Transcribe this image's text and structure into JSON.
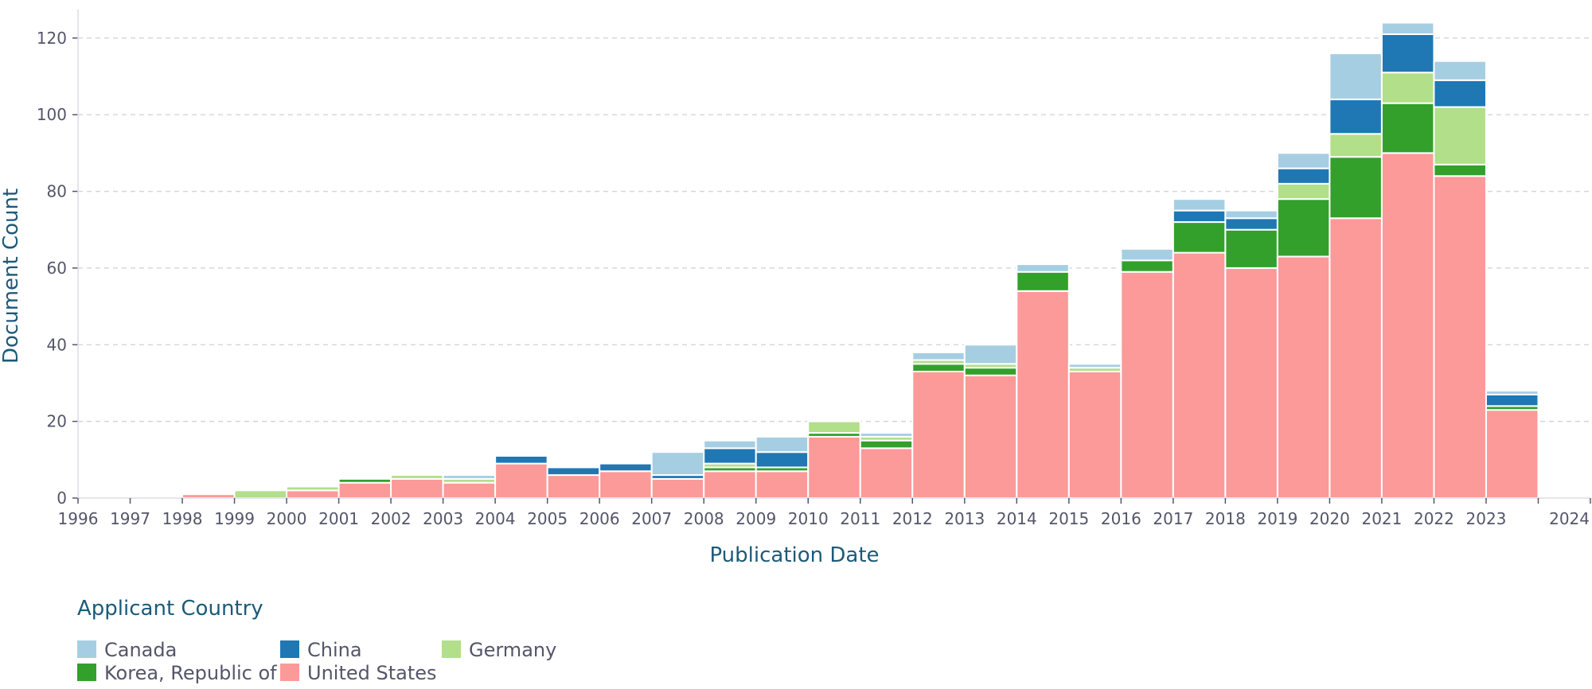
{
  "chart_data": {
    "type": "bar",
    "stacked": true,
    "xlabel": "Publication Date",
    "ylabel": "Document Count",
    "ylim": [
      0,
      129
    ],
    "yticks": [
      0,
      20,
      40,
      60,
      80,
      100,
      120
    ],
    "grid": "horizontal dashed",
    "legend_title": "Applicant Country",
    "legend_position": "bottom-left",
    "categories": [
      "1996",
      "1997",
      "1998",
      "1999",
      "2000",
      "2001",
      "2002",
      "2003",
      "2004",
      "2005",
      "2006",
      "2007",
      "2008",
      "2009",
      "2010",
      "2011",
      "2012",
      "2013",
      "2014",
      "2015",
      "2016",
      "2017",
      "2018",
      "2019",
      "2020",
      "2021",
      "2022",
      "2023",
      "2024"
    ],
    "series": [
      {
        "name": "United States",
        "color": "#fb9a99",
        "values": [
          0,
          0,
          1,
          0,
          2,
          4,
          5,
          4,
          9,
          6,
          7,
          5,
          7,
          7,
          16,
          13,
          33,
          32,
          54,
          33,
          59,
          64,
          60,
          63,
          73,
          90,
          84,
          23,
          0
        ]
      },
      {
        "name": "Korea, Republic of",
        "color": "#33a02c",
        "values": [
          0,
          0,
          0,
          0,
          0,
          1,
          0,
          0,
          0,
          0,
          0,
          0,
          1,
          1,
          1,
          2,
          2,
          2,
          5,
          0,
          3,
          8,
          10,
          15,
          16,
          13,
          3,
          1,
          0
        ]
      },
      {
        "name": "Germany",
        "color": "#b2df8a",
        "values": [
          0,
          0,
          0,
          2,
          1,
          0,
          1,
          1,
          0,
          0,
          0,
          0,
          1,
          0,
          3,
          1,
          1,
          1,
          0,
          1,
          0,
          0,
          0,
          4,
          6,
          8,
          15,
          0,
          0
        ]
      },
      {
        "name": "China",
        "color": "#1f78b4",
        "values": [
          0,
          0,
          0,
          0,
          0,
          0,
          0,
          0,
          2,
          2,
          2,
          1,
          4,
          4,
          0,
          0,
          0,
          0,
          0,
          0,
          0,
          3,
          3,
          4,
          9,
          10,
          7,
          3,
          0
        ]
      },
      {
        "name": "Canada",
        "color": "#a6cee3",
        "values": [
          0,
          0,
          0,
          0,
          0,
          0,
          0,
          1,
          0,
          0,
          0,
          6,
          2,
          4,
          0,
          1,
          2,
          5,
          2,
          1,
          3,
          3,
          2,
          4,
          12,
          3,
          5,
          1,
          0
        ]
      }
    ],
    "legend_order": [
      "Canada",
      "China",
      "Germany",
      "Korea, Republic of",
      "United States"
    ]
  }
}
